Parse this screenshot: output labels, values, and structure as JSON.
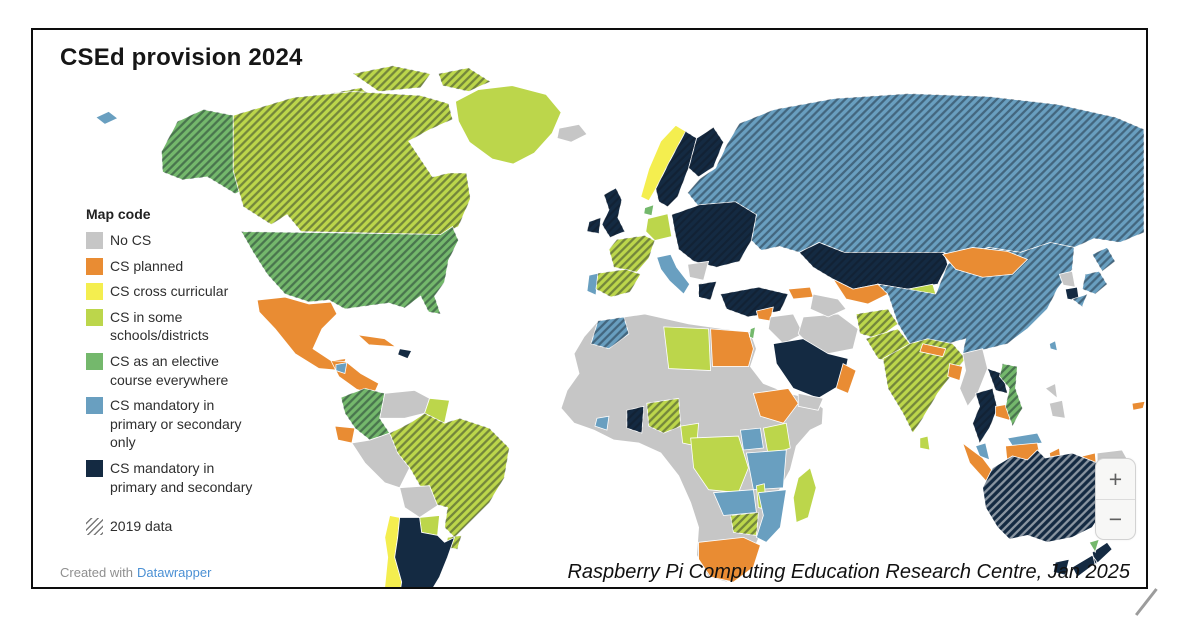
{
  "title": "CSEd provision 2024",
  "legend": {
    "heading": "Map code",
    "hatch_label": "2019 data"
  },
  "footer": {
    "credit_prefix": "Created with",
    "credit_link": "Datawrapper"
  },
  "attribution": "Raspberry Pi Computing Education Research Centre, Jan 2025",
  "map_controls": {
    "zoom_in": "+",
    "zoom_out": "−"
  },
  "chart_data": {
    "type": "choropleth",
    "title": "CSEd provision 2024",
    "hatch_meaning": "2019 data",
    "legend_position": "left",
    "categories": [
      {
        "label": "No CS",
        "color": "#c6c6c6"
      },
      {
        "label": "CS planned",
        "color": "#e98c33"
      },
      {
        "label": "CS cross curricular",
        "color": "#f4ee4f"
      },
      {
        "label": "CS in some schools/districts",
        "color": "#bcd64b"
      },
      {
        "label": "CS as an elective course everywhere",
        "color": "#74b86c"
      },
      {
        "label": "CS mandatory in primary or secondary only",
        "color": "#699fc0"
      },
      {
        "label": "CS mandatory in primary and secondary",
        "color": "#142a42"
      }
    ],
    "regions": [
      {
        "id": "russia",
        "name": "Russia",
        "category": "CS mandatory in primary or secondary only",
        "data_2019": true
      },
      {
        "id": "canadian-arctic",
        "name": "Canadian Arctic",
        "category": "CS in some schools/districts",
        "data_2019": true
      },
      {
        "id": "greenland",
        "name": "Greenland",
        "category": "CS in some schools/districts",
        "data_2019": false
      },
      {
        "id": "alaska",
        "name": "Alaska (US)",
        "category": "CS as an elective course everywhere",
        "data_2019": true
      },
      {
        "id": "canada",
        "name": "Canada",
        "category": "CS in some schools/districts",
        "data_2019": true
      },
      {
        "id": "usa",
        "name": "United States",
        "category": "CS as an elective course everywhere",
        "data_2019": true
      },
      {
        "id": "aleutians",
        "name": "Aleutian Islands",
        "category": "CS mandatory in primary or secondary only",
        "data_2019": false
      },
      {
        "id": "mexico",
        "name": "Mexico",
        "category": "CS planned",
        "data_2019": false
      },
      {
        "id": "central-america",
        "name": "Central America",
        "category": "CS planned",
        "data_2019": false
      },
      {
        "id": "guatemala",
        "name": "Guatemala",
        "category": "CS mandatory in primary or secondary only",
        "data_2019": false
      },
      {
        "id": "cuba",
        "name": "Cuba",
        "category": "CS planned",
        "data_2019": false
      },
      {
        "id": "hispaniola",
        "name": "Hispaniola",
        "category": "CS mandatory in primary and secondary",
        "data_2019": false
      },
      {
        "id": "colombia",
        "name": "Colombia",
        "category": "CS as an elective course everywhere",
        "data_2019": true
      },
      {
        "id": "venezuela",
        "name": "Venezuela",
        "category": "No CS",
        "data_2019": false
      },
      {
        "id": "guianas",
        "name": "Guyana & Suriname",
        "category": "CS in some schools/districts",
        "data_2019": false
      },
      {
        "id": "ecuador",
        "name": "Ecuador",
        "category": "CS planned",
        "data_2019": false
      },
      {
        "id": "peru",
        "name": "Peru",
        "category": "No CS",
        "data_2019": false
      },
      {
        "id": "brazil",
        "name": "Brazil",
        "category": "CS in some schools/districts",
        "data_2019": true
      },
      {
        "id": "bolivia",
        "name": "Bolivia",
        "category": "No CS",
        "data_2019": false
      },
      {
        "id": "paraguay",
        "name": "Paraguay",
        "category": "CS in some schools/districts",
        "data_2019": false
      },
      {
        "id": "uruguay",
        "name": "Uruguay",
        "category": "CS in some schools/districts",
        "data_2019": true
      },
      {
        "id": "chile",
        "name": "Chile",
        "category": "CS cross curricular",
        "data_2019": false
      },
      {
        "id": "argentina",
        "name": "Argentina",
        "category": "CS mandatory in primary and secondary",
        "data_2019": false
      },
      {
        "id": "iceland",
        "name": "Iceland",
        "category": "No CS",
        "data_2019": false
      },
      {
        "id": "ireland",
        "name": "Ireland",
        "category": "CS mandatory in primary and secondary",
        "data_2019": true
      },
      {
        "id": "uk",
        "name": "United Kingdom",
        "category": "CS mandatory in primary and secondary",
        "data_2019": true
      },
      {
        "id": "norway",
        "name": "Norway",
        "category": "CS cross curricular",
        "data_2019": false
      },
      {
        "id": "sweden",
        "name": "Sweden",
        "category": "CS mandatory in primary and secondary",
        "data_2019": true
      },
      {
        "id": "finland",
        "name": "Finland",
        "category": "CS mandatory in primary and secondary",
        "data_2019": true
      },
      {
        "id": "denmark",
        "name": "Denmark",
        "category": "CS as an elective course everywhere",
        "data_2019": false
      },
      {
        "id": "germany",
        "name": "Germany",
        "category": "CS in some schools/districts",
        "data_2019": false
      },
      {
        "id": "france",
        "name": "France",
        "category": "CS in some schools/districts",
        "data_2019": true
      },
      {
        "id": "portugal",
        "name": "Portugal",
        "category": "CS mandatory in primary or secondary only",
        "data_2019": false
      },
      {
        "id": "spain",
        "name": "Spain",
        "category": "CS in some schools/districts",
        "data_2019": true
      },
      {
        "id": "italy",
        "name": "Italy",
        "category": "CS mandatory in primary or secondary only",
        "data_2019": false
      },
      {
        "id": "eastern-europe",
        "name": "Central & Eastern Europe",
        "category": "CS mandatory in primary and secondary",
        "data_2019": true
      },
      {
        "id": "balkans",
        "name": "Western Balkans",
        "category": "No CS",
        "data_2019": false
      },
      {
        "id": "greece",
        "name": "Greece",
        "category": "CS mandatory in primary and secondary",
        "data_2019": true
      },
      {
        "id": "turkey",
        "name": "Turkey",
        "category": "CS mandatory in primary and secondary",
        "data_2019": true
      },
      {
        "id": "africa-other",
        "name": "Other African countries",
        "category": "No CS",
        "data_2019": false
      },
      {
        "id": "morocco",
        "name": "Morocco",
        "category": "CS mandatory in primary or secondary only",
        "data_2019": true
      },
      {
        "id": "libya",
        "name": "Libya",
        "category": "CS in some schools/districts",
        "data_2019": false
      },
      {
        "id": "egypt",
        "name": "Egypt",
        "category": "CS planned",
        "data_2019": false
      },
      {
        "id": "ethiopia",
        "name": "Ethiopia",
        "category": "CS planned",
        "data_2019": false
      },
      {
        "id": "nigeria",
        "name": "Nigeria",
        "category": "CS in some schools/districts",
        "data_2019": true
      },
      {
        "id": "ghana",
        "name": "Ghana",
        "category": "CS mandatory in primary and secondary",
        "data_2019": true
      },
      {
        "id": "liberia",
        "name": "Liberia & Sierra Leone",
        "category": "CS mandatory in primary or secondary only",
        "data_2019": false
      },
      {
        "id": "cameroon",
        "name": "Cameroon",
        "category": "CS in some schools/districts",
        "data_2019": false
      },
      {
        "id": "drc",
        "name": "DR Congo",
        "category": "CS in some schools/districts",
        "data_2019": false
      },
      {
        "id": "uganda",
        "name": "Uganda",
        "category": "CS mandatory in primary or secondary only",
        "data_2019": false
      },
      {
        "id": "kenya",
        "name": "Kenya",
        "category": "CS in some schools/districts",
        "data_2019": false
      },
      {
        "id": "tanzania",
        "name": "Tanzania",
        "category": "CS mandatory in primary or secondary only",
        "data_2019": false
      },
      {
        "id": "zambia",
        "name": "Zambia",
        "category": "CS mandatory in primary or secondary only",
        "data_2019": false
      },
      {
        "id": "malawi",
        "name": "Malawi",
        "category": "CS in some schools/districts",
        "data_2019": false
      },
      {
        "id": "mozambique",
        "name": "Mozambique",
        "category": "CS mandatory in primary or secondary only",
        "data_2019": false
      },
      {
        "id": "zimbabwe",
        "name": "Zimbabwe",
        "category": "CS in some schools/districts",
        "data_2019": true
      },
      {
        "id": "south-africa",
        "name": "South Africa",
        "category": "CS planned",
        "data_2019": false
      },
      {
        "id": "madagascar",
        "name": "Madagascar",
        "category": "CS in some schools/districts",
        "data_2019": false
      },
      {
        "id": "syria",
        "name": "Syria",
        "category": "CS planned",
        "data_2019": false
      },
      {
        "id": "iraq",
        "name": "Iraq",
        "category": "No CS",
        "data_2019": false
      },
      {
        "id": "iran",
        "name": "Iran",
        "category": "No CS",
        "data_2019": false
      },
      {
        "id": "saudi-arabia",
        "name": "Saudi Arabia",
        "category": "CS mandatory in primary and secondary",
        "data_2019": false
      },
      {
        "id": "yemen",
        "name": "Yemen",
        "category": "No CS",
        "data_2019": false
      },
      {
        "id": "oman",
        "name": "Oman",
        "category": "CS planned",
        "data_2019": false
      },
      {
        "id": "israel",
        "name": "Israel",
        "category": "CS as an elective course everywhere",
        "data_2019": false
      },
      {
        "id": "caucasus",
        "name": "Caucasus",
        "category": "CS planned",
        "data_2019": false
      },
      {
        "id": "kazakhstan",
        "name": "Kazakhstan",
        "category": "CS mandatory in primary and secondary",
        "data_2019": true
      },
      {
        "id": "uzbekistan",
        "name": "Uzbekistan",
        "category": "CS planned",
        "data_2019": false
      },
      {
        "id": "turkmenistan",
        "name": "Turkmenistan",
        "category": "No CS",
        "data_2019": false
      },
      {
        "id": "kyrgyzstan",
        "name": "Kyrgyzstan",
        "category": "CS in some schools/districts",
        "data_2019": false
      },
      {
        "id": "china",
        "name": "China",
        "category": "CS mandatory in primary or secondary only",
        "data_2019": true
      },
      {
        "id": "mongolia",
        "name": "Mongolia",
        "category": "CS planned",
        "data_2019": false
      },
      {
        "id": "afghanistan",
        "name": "Afghanistan",
        "category": "CS in some schools/districts",
        "data_2019": true
      },
      {
        "id": "pakistan",
        "name": "Pakistan",
        "category": "CS in some schools/districts",
        "data_2019": true
      },
      {
        "id": "india",
        "name": "India",
        "category": "CS in some schools/districts",
        "data_2019": true
      },
      {
        "id": "nepal",
        "name": "Nepal",
        "category": "CS planned",
        "data_2019": false
      },
      {
        "id": "bangladesh",
        "name": "Bangladesh",
        "category": "CS planned",
        "data_2019": false
      },
      {
        "id": "sri-lanka",
        "name": "Sri Lanka",
        "category": "CS in some schools/districts",
        "data_2019": false
      },
      {
        "id": "myanmar",
        "name": "Myanmar",
        "category": "No CS",
        "data_2019": false
      },
      {
        "id": "thailand",
        "name": "Thailand",
        "category": "CS mandatory in primary and secondary",
        "data_2019": true
      },
      {
        "id": "laos",
        "name": "Laos",
        "category": "CS mandatory in primary and secondary",
        "data_2019": true
      },
      {
        "id": "cambodia",
        "name": "Cambodia",
        "category": "CS planned",
        "data_2019": false
      },
      {
        "id": "vietnam",
        "name": "Vietnam",
        "category": "CS as an elective course everywhere",
        "data_2019": true
      },
      {
        "id": "north-korea",
        "name": "North Korea",
        "category": "No CS",
        "data_2019": false
      },
      {
        "id": "south-korea",
        "name": "South Korea",
        "category": "CS mandatory in primary and secondary",
        "data_2019": false
      },
      {
        "id": "japan",
        "name": "Japan",
        "category": "CS mandatory in primary or secondary only",
        "data_2019": true
      },
      {
        "id": "taiwan",
        "name": "Taiwan",
        "category": "CS mandatory in primary or secondary only",
        "data_2019": false
      },
      {
        "id": "philippines",
        "name": "Philippines",
        "category": "No CS",
        "data_2019": false
      },
      {
        "id": "malaysia",
        "name": "Malaysia",
        "category": "CS mandatory in primary or secondary only",
        "data_2019": false
      },
      {
        "id": "indonesia",
        "name": "Indonesia",
        "category": "CS planned",
        "data_2019": false
      },
      {
        "id": "papua-new-guinea",
        "name": "Papua New Guinea",
        "category": "No CS",
        "data_2019": false
      },
      {
        "id": "australia",
        "name": "Australia",
        "category": "CS mandatory in primary and secondary",
        "data_2019": true,
        "hatch": "light"
      },
      {
        "id": "tasmania",
        "name": "Tasmania",
        "category": "CS mandatory in primary and secondary",
        "data_2019": false
      },
      {
        "id": "new-zealand",
        "name": "New Zealand",
        "category": "CS mandatory in primary and secondary",
        "data_2019": false
      },
      {
        "id": "nz-north-tip",
        "name": "New Zealand (north tip)",
        "category": "CS as an elective course everywhere",
        "data_2019": false
      },
      {
        "id": "fiji",
        "name": "Fiji",
        "category": "CS planned",
        "data_2019": false
      }
    ]
  }
}
